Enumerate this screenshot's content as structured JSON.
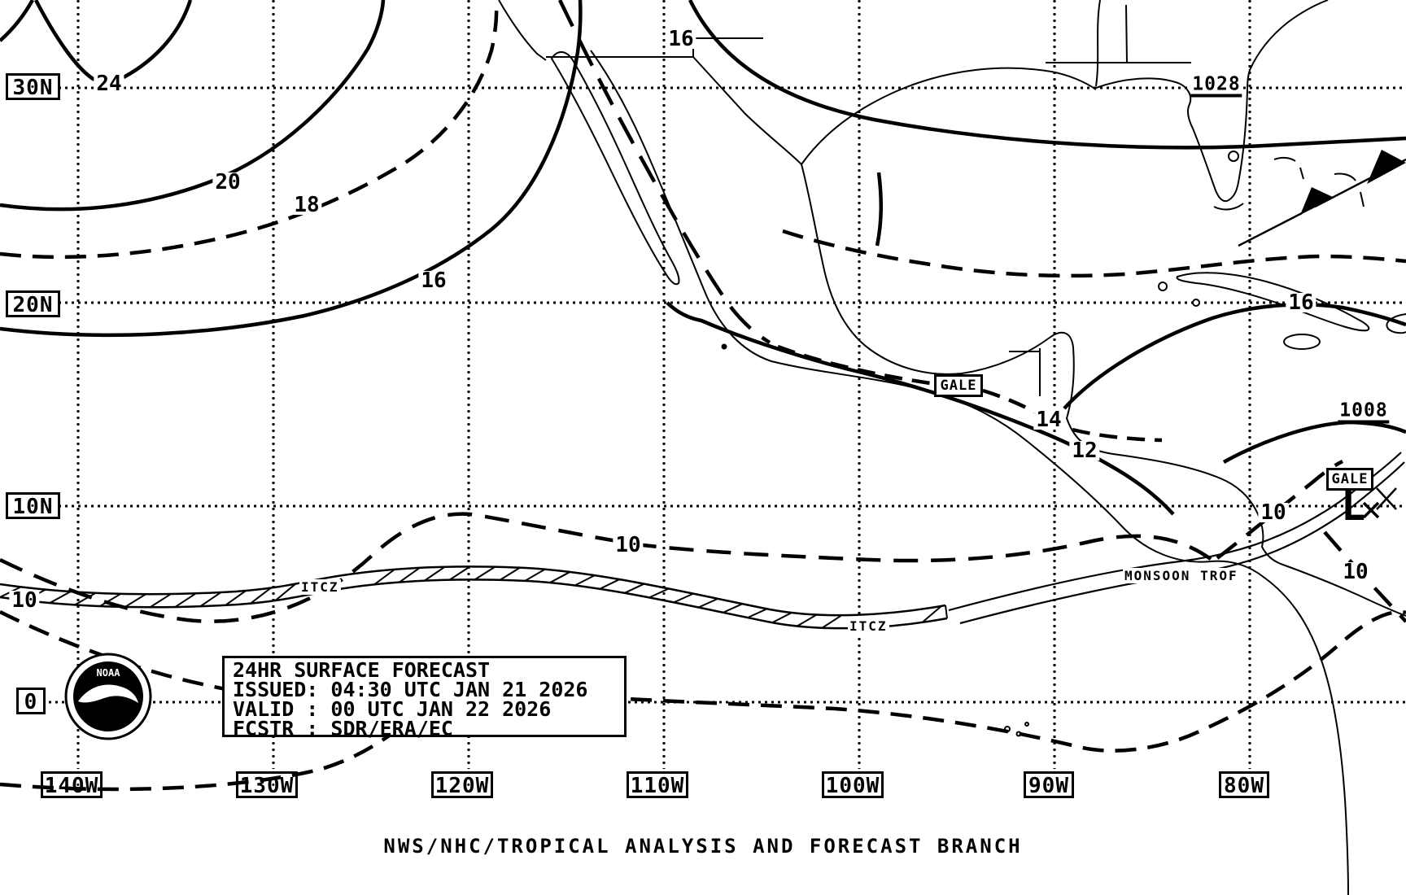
{
  "map": {
    "latitudes": [
      {
        "label": "30N"
      },
      {
        "label": "20N"
      },
      {
        "label": "10N"
      },
      {
        "label": "0"
      }
    ],
    "longitudes": [
      {
        "label": "140W"
      },
      {
        "label": "130W"
      },
      {
        "label": "120W"
      },
      {
        "label": "110W"
      },
      {
        "label": "100W"
      },
      {
        "label": "90W"
      },
      {
        "label": "80W"
      }
    ],
    "isobar_labels": [
      {
        "value": "24"
      },
      {
        "value": "20"
      },
      {
        "value": "18"
      },
      {
        "value": "16"
      },
      {
        "value": "16"
      },
      {
        "value": "16"
      },
      {
        "value": "14"
      },
      {
        "value": "12"
      },
      {
        "value": "10"
      },
      {
        "value": "10"
      },
      {
        "value": "10"
      },
      {
        "value": "10"
      }
    ],
    "pressure_centers": [
      {
        "value": "1028",
        "type": "high"
      },
      {
        "value": "1008",
        "type": "low"
      }
    ],
    "low_center_symbol": "L",
    "warnings": [
      {
        "text": "GALE"
      },
      {
        "text": "GALE"
      }
    ],
    "convergence_labels": [
      {
        "text": "ITCZ"
      },
      {
        "text": "ITCZ"
      },
      {
        "text": "MONSOON TROF"
      }
    ]
  },
  "title_block": {
    "lines": [
      "24HR SURFACE FORECAST",
      "ISSUED: 04:30 UTC JAN 21 2026",
      "VALID : 00 UTC JAN 22 2026",
      "FCSTR : SDR/ERA/EC"
    ]
  },
  "caption": "NWS/NHC/TROPICAL ANALYSIS AND FORECAST BRANCH",
  "logo": {
    "text": "NOAA"
  },
  "colors": {
    "ink": "#000000",
    "background": "#ffffff"
  }
}
